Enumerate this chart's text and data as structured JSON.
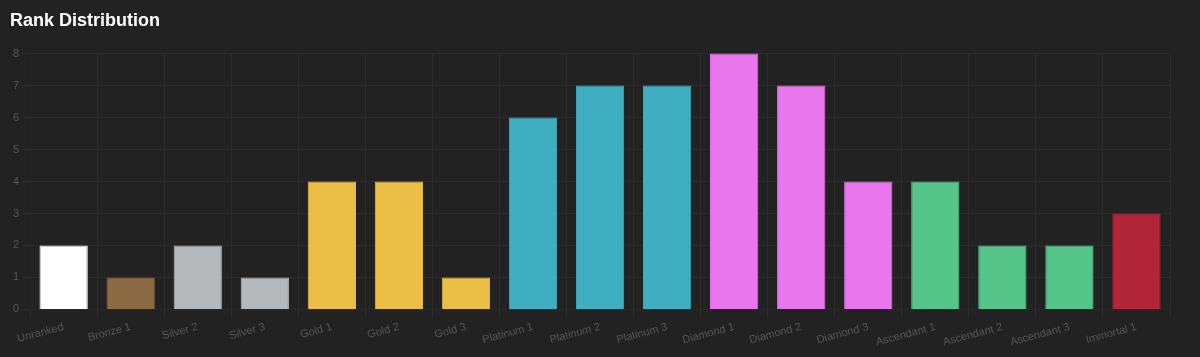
{
  "chart_data": {
    "type": "bar",
    "title": "Rank Distribution",
    "categories": [
      "Unranked",
      "Bronze 1",
      "Silver 2",
      "Silver 3",
      "Gold 1",
      "Gold 2",
      "Gold 3",
      "Platinum 1",
      "Platinum 2",
      "Platinum 3",
      "Diamond 1",
      "Diamond 2",
      "Diamond 3",
      "Ascendant 1",
      "Ascendant 2",
      "Ascendant 3",
      "Immortal 1"
    ],
    "values": [
      2,
      1,
      2,
      1,
      4,
      4,
      1,
      6,
      7,
      7,
      8,
      7,
      4,
      4,
      2,
      2,
      3
    ],
    "colors": [
      "#ffffff",
      "#8c6a43",
      "#b5b9bb",
      "#b5b9bb",
      "#ebbf45",
      "#ebbf45",
      "#ebbf45",
      "#3faec0",
      "#3faec0",
      "#3faec0",
      "#e876ec",
      "#e876ec",
      "#e876ec",
      "#56c58a",
      "#56c58a",
      "#56c58a",
      "#b3263a"
    ],
    "ylim": [
      0,
      8
    ],
    "yticks": [
      0,
      1,
      2,
      3,
      4,
      5,
      6,
      7,
      8
    ],
    "grid": true
  }
}
